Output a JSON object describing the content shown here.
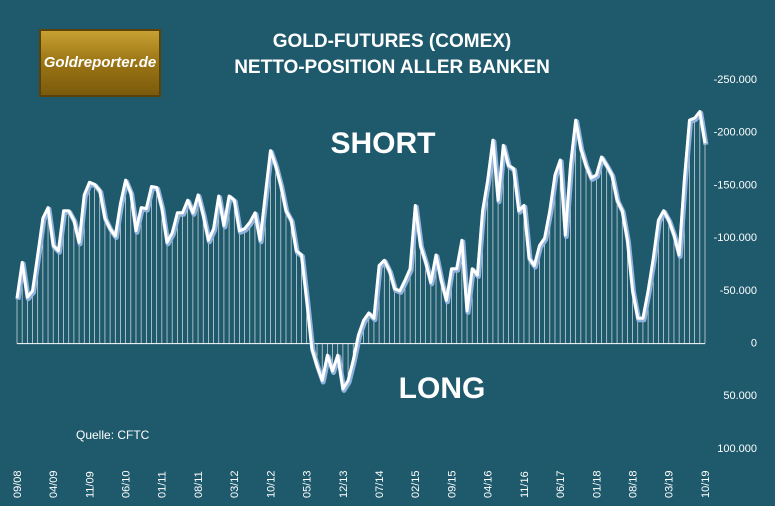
{
  "chart_data": {
    "type": "line",
    "title": [
      "GOLD-FUTURES (COMEX)",
      "NETTO-POSITION ALLER BANKEN"
    ],
    "logo": "Goldreporter.de",
    "annotations": [
      "SHORT",
      "LONG"
    ],
    "source": "Quelle: CFTC",
    "color": "#ffffff",
    "grid": false,
    "categories": [
      "09/08",
      null,
      null,
      null,
      null,
      null,
      null,
      "04/09",
      null,
      null,
      null,
      null,
      null,
      null,
      "11/09",
      null,
      null,
      null,
      null,
      null,
      null,
      "06/10",
      null,
      null,
      null,
      null,
      null,
      null,
      "01/11",
      null,
      null,
      null,
      null,
      null,
      null,
      "08/11",
      null,
      null,
      null,
      null,
      null,
      null,
      "03/12",
      null,
      null,
      null,
      null,
      null,
      null,
      "10/12",
      null,
      null,
      null,
      null,
      null,
      null,
      "05/13",
      null,
      null,
      null,
      null,
      null,
      null,
      "12/13",
      null,
      null,
      null,
      null,
      null,
      null,
      "07/14",
      null,
      null,
      null,
      null,
      null,
      null,
      "02/15",
      null,
      null,
      null,
      null,
      null,
      null,
      "09/15",
      null,
      null,
      null,
      null,
      null,
      null,
      "04/16",
      null,
      null,
      null,
      null,
      null,
      null,
      "11/16",
      null,
      null,
      null,
      null,
      null,
      null,
      "06/17",
      null,
      null,
      null,
      null,
      null,
      null,
      "01/18",
      null,
      null,
      null,
      null,
      null,
      null,
      "08/18",
      null,
      null,
      null,
      null,
      null,
      null,
      "03/19",
      null,
      null,
      null,
      null,
      null,
      null,
      "10/19"
    ],
    "values": [
      -43000,
      -77000,
      -44000,
      -50000,
      -84000,
      -119000,
      -129000,
      -93000,
      -88000,
      -126000,
      -126000,
      -117000,
      -96000,
      -141000,
      -153000,
      -151000,
      -145000,
      -119000,
      -109000,
      -102000,
      -133000,
      -155000,
      -143000,
      -107000,
      -129000,
      -128000,
      -149000,
      -148000,
      -129000,
      -96000,
      -105000,
      -124000,
      -124000,
      -136000,
      -124000,
      -141000,
      -122000,
      -98000,
      -109000,
      -140000,
      -112000,
      -140000,
      -136000,
      -107000,
      -109000,
      -115000,
      -124000,
      -98000,
      -141000,
      -183000,
      -169000,
      -150000,
      -126000,
      -117000,
      -88000,
      -84000,
      -41000,
      5000,
      21000,
      35000,
      11000,
      26000,
      11000,
      43000,
      35000,
      16000,
      -8000,
      -22000,
      -29000,
      -24000,
      -74000,
      -79000,
      -69000,
      -52000,
      -50000,
      -60000,
      -71000,
      -131000,
      -93000,
      -77000,
      -58000,
      -84000,
      -60000,
      -41000,
      -71000,
      -71000,
      -98000,
      -31000,
      -71000,
      -65000,
      -126000,
      -155000,
      -193000,
      -136000,
      -188000,
      -169000,
      -166000,
      -126000,
      -131000,
      -81000,
      -74000,
      -93000,
      -100000,
      -126000,
      -160000,
      -174000,
      -103000,
      -169000,
      -212000,
      -185000,
      -169000,
      -157000,
      -160000,
      -177000,
      -169000,
      -160000,
      -136000,
      -126000,
      -98000,
      -50000,
      -24000,
      -24000,
      -50000,
      -81000,
      -117000,
      -126000,
      -117000,
      -103000,
      -84000,
      -155000,
      -212000,
      -214000,
      -220000,
      -190000
    ],
    "ylim": [
      100000,
      -250000
    ],
    "yticks": [
      {
        "value": -250000,
        "label": "-250.000"
      },
      {
        "value": -200000,
        "label": "-200.000"
      },
      {
        "value": -150000,
        "label": "-150.000"
      },
      {
        "value": -100000,
        "label": "-100.000"
      },
      {
        "value": -50000,
        "label": "-50.000"
      },
      0,
      {
        "value": 50000,
        "label": "50.000"
      },
      {
        "value": 100000,
        "label": "100.000"
      }
    ]
  }
}
